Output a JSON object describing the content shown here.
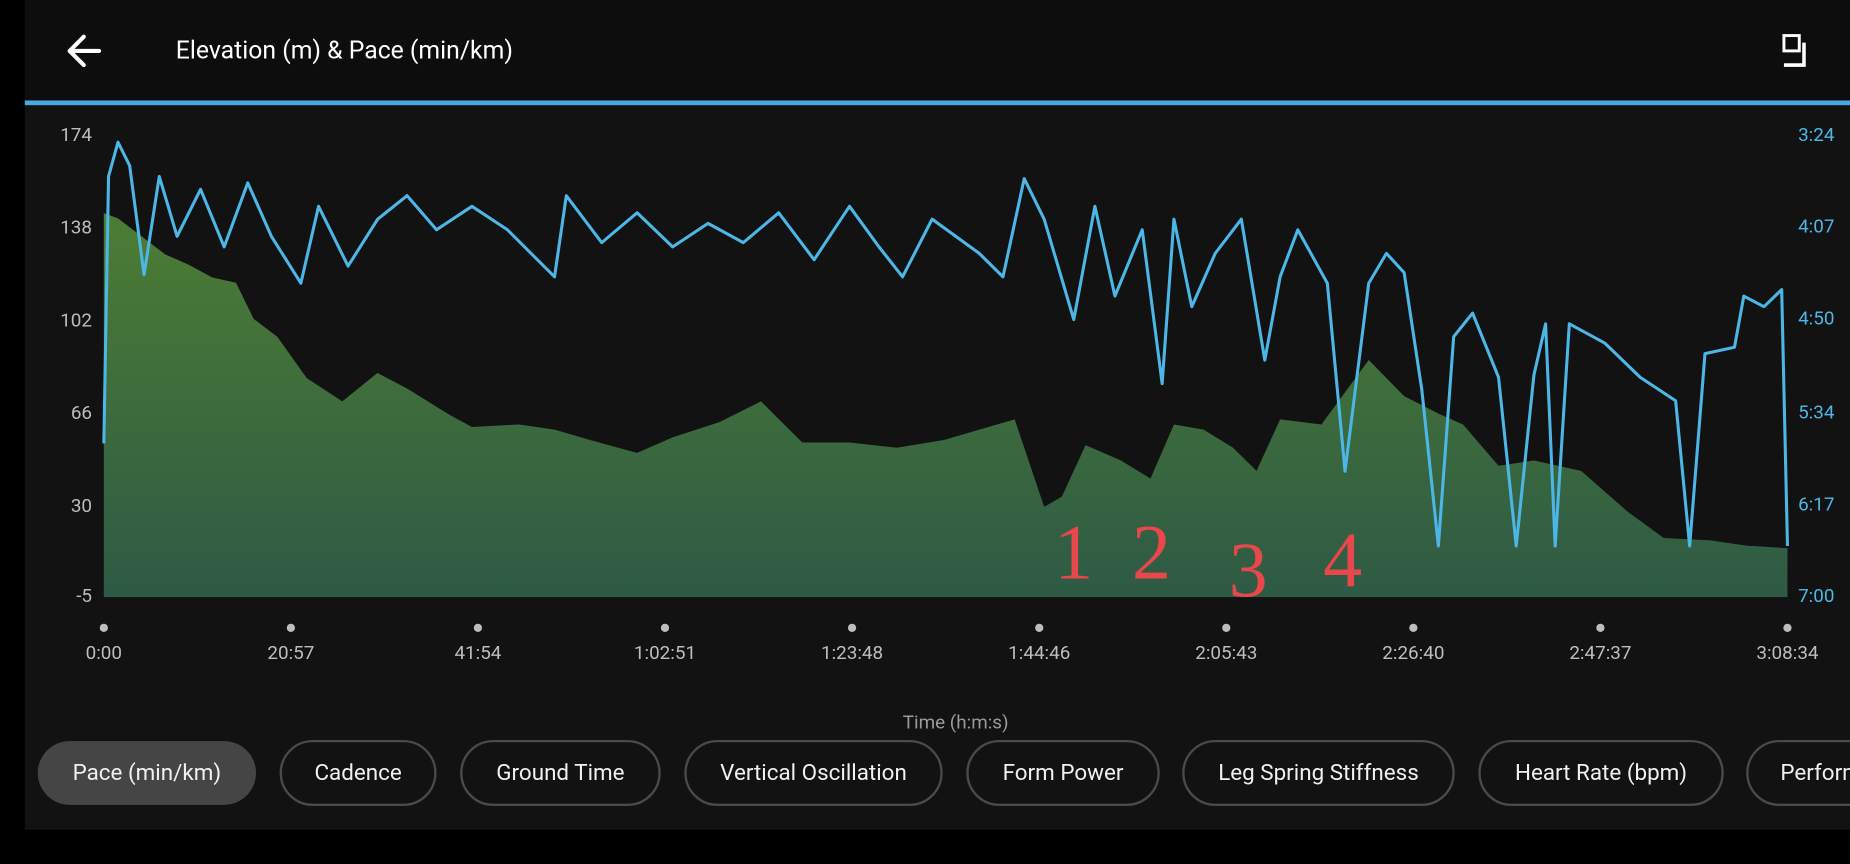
{
  "header": {
    "title": "Elevation (m) & Pace (min/km)"
  },
  "chart_data": {
    "type": "line",
    "xlabel": "Time (h:m:s)",
    "xlim": [
      0,
      11314
    ],
    "xticks": [
      {
        "value": 0,
        "label": "0:00"
      },
      {
        "value": 1257,
        "label": "20:57"
      },
      {
        "value": 2514,
        "label": "41:54"
      },
      {
        "value": 3771,
        "label": "1:02:51"
      },
      {
        "value": 5028,
        "label": "1:23:48"
      },
      {
        "value": 6286,
        "label": "1:44:46"
      },
      {
        "value": 7543,
        "label": "2:05:43"
      },
      {
        "value": 8800,
        "label": "2:26:40"
      },
      {
        "value": 10057,
        "label": "2:47:37"
      },
      {
        "value": 11314,
        "label": "3:08:34"
      }
    ],
    "ylim": [
      -5,
      174
    ],
    "yticks": [
      -5,
      30,
      66,
      102,
      138,
      174
    ],
    "y2lim": [
      420,
      204
    ],
    "y2ticks": [
      {
        "value": 420,
        "label": "7:00"
      },
      {
        "value": 377,
        "label": "6:17"
      },
      {
        "value": 334,
        "label": "5:34"
      },
      {
        "value": 290,
        "label": "4:50"
      },
      {
        "value": 247,
        "label": "4:07"
      },
      {
        "value": 204,
        "label": "3:24"
      }
    ],
    "series": [
      {
        "style": "area",
        "color": "#4c7d34",
        "x": [
          0,
          95,
          254,
          412,
          571,
          729,
          888,
          1007,
          1166,
          1364,
          1602,
          1839,
          2038,
          2315,
          2474,
          2791,
          3029,
          3267,
          3584,
          3822,
          4139,
          4416,
          4694,
          5011,
          5328,
          5645,
          6121,
          6319,
          6438,
          6597,
          6835,
          7033,
          7191,
          7390,
          7588,
          7746,
          7905,
          8182,
          8500,
          8738,
          8976,
          9134,
          9372,
          9610,
          9927,
          10244,
          10482,
          10799,
          11037,
          11314
        ],
        "values": [
          144,
          142,
          135,
          128,
          124,
          119,
          117,
          103,
          96,
          80,
          71,
          82,
          76,
          66,
          61,
          62,
          60,
          56,
          51,
          57,
          63,
          71,
          55,
          55,
          53,
          56,
          64,
          30,
          34,
          54,
          48,
          41,
          62,
          60,
          53,
          44,
          64,
          62,
          87,
          73,
          66,
          62,
          46,
          48,
          44,
          28,
          18,
          17,
          15,
          14
        ]
      },
      {
        "style": "line",
        "color": "#4cb6e6",
        "axis": "y2",
        "x": [
          0,
          32,
          95,
          174,
          270,
          373,
          492,
          650,
          809,
          967,
          1126,
          1324,
          1443,
          1641,
          1840,
          2038,
          2236,
          2474,
          2712,
          3029,
          3108,
          3346,
          3584,
          3822,
          4060,
          4297,
          4535,
          4773,
          5011,
          5209,
          5368,
          5566,
          5883,
          6042,
          6185,
          6319,
          6518,
          6660,
          6795,
          6978,
          7112,
          7191,
          7311,
          7469,
          7644,
          7802,
          7905,
          8024,
          8222,
          8341,
          8500,
          8619,
          8738,
          8857,
          8968,
          9071,
          9198,
          9372,
          9491,
          9610,
          9689,
          9753,
          9848,
          10086,
          10324,
          10562,
          10657,
          10760,
          10958,
          11021,
          11156,
          11275,
          11314
        ],
        "values": [
          348,
          223,
          207,
          218,
          269,
          223,
          251,
          229,
          256,
          226,
          251,
          273,
          237,
          265,
          243,
          232,
          248,
          237,
          248,
          270,
          232,
          254,
          240,
          256,
          245,
          254,
          240,
          262,
          237,
          256,
          270,
          243,
          259,
          270,
          224,
          243,
          290,
          237,
          279,
          248,
          320,
          243,
          284,
          259,
          243,
          309,
          270,
          248,
          273,
          361,
          273,
          259,
          268,
          323,
          396,
          298,
          287,
          317,
          396,
          316,
          292,
          396,
          292,
          301,
          317,
          328,
          396,
          306,
          303,
          279,
          284,
          276,
          396
        ]
      }
    ],
    "annotations": [
      "1",
      "2",
      "3",
      "4"
    ]
  },
  "tabs": [
    "Pace (min/km)",
    "Cadence",
    "Ground Time",
    "Vertical Oscillation",
    "Form Power",
    "Leg Spring Stiffness",
    "Heart Rate (bpm)",
    "Performance"
  ]
}
